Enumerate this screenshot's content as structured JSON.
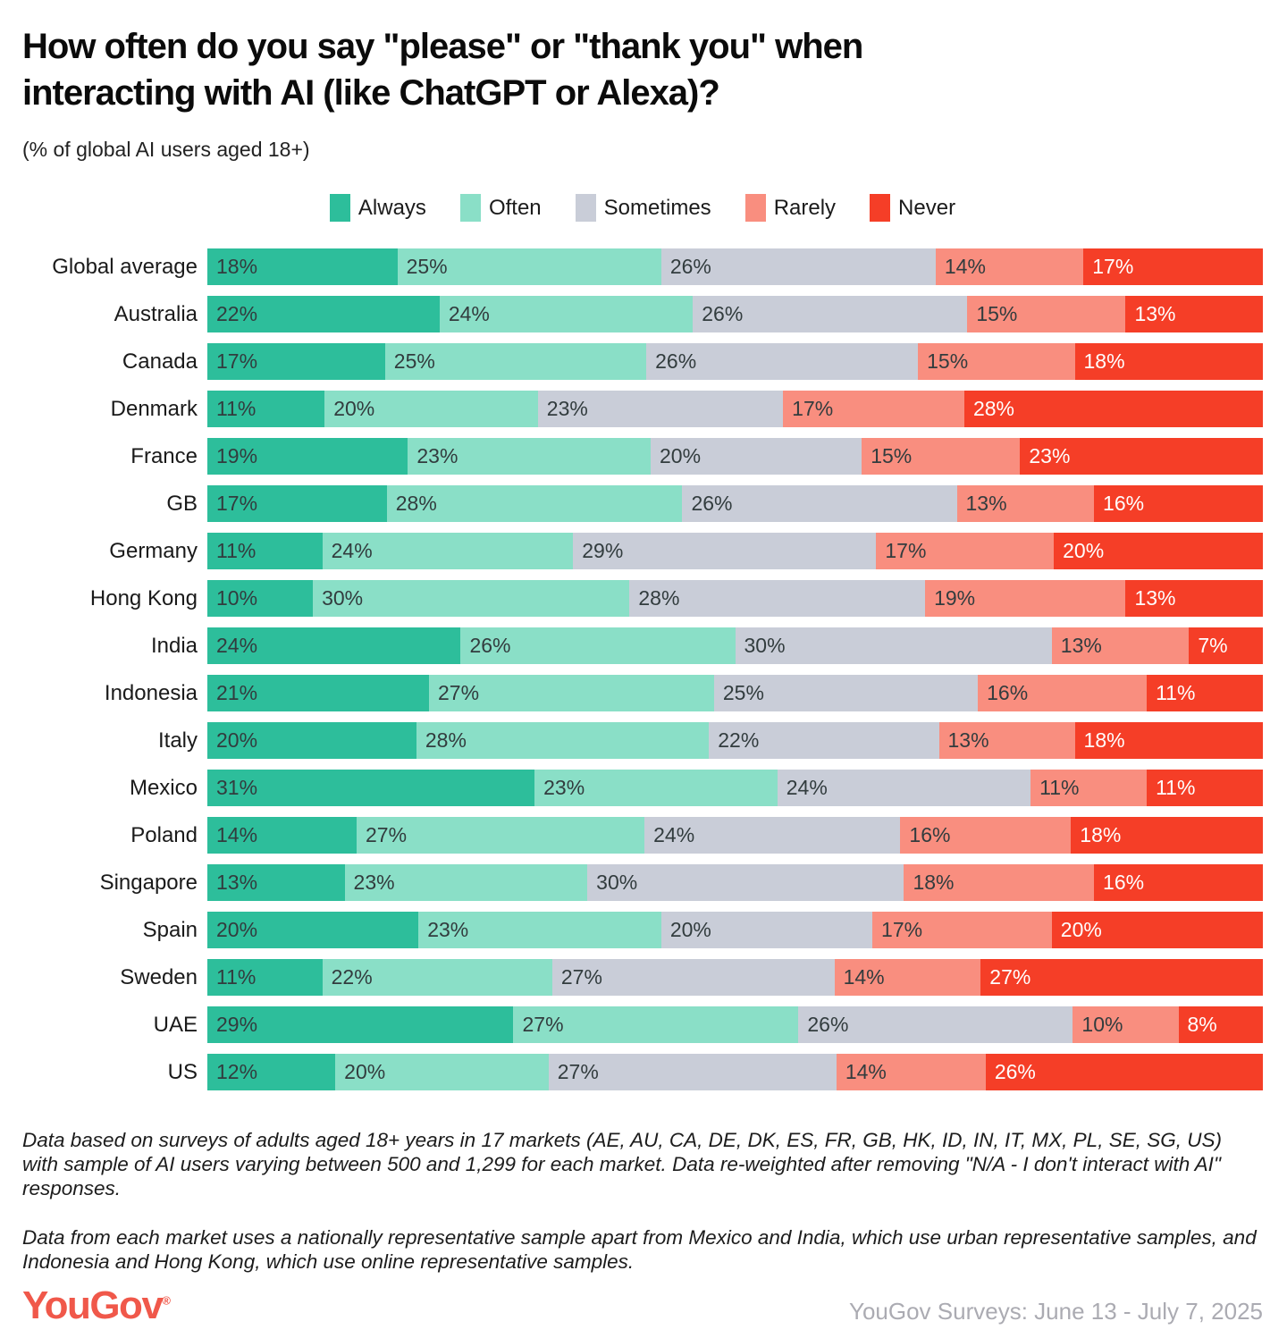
{
  "title": {
    "line1": "How often do you say \"please\" or \"thank you\" when",
    "line2": "interacting with AI (like ChatGPT or Alexa)?"
  },
  "subtitle": "(% of global AI users aged 18+)",
  "colors": {
    "always": "#2DBE9B",
    "often": "#8ADFC7",
    "sometimes": "#C9CDD8",
    "rarely": "#F98E7F",
    "never": "#F53E27",
    "label_dark": "#323C3E",
    "label_light": "#FFFFFF",
    "logo_red": "#F0584A",
    "source_gray": "#ABABB2"
  },
  "chart_data": {
    "type": "bar",
    "stacked": true,
    "orientation": "horizontal",
    "unit": "%",
    "legend_position": "top-center",
    "categories": [
      "Global average",
      "Australia",
      "Canada",
      "Denmark",
      "France",
      "GB",
      "Germany",
      "Hong Kong",
      "India",
      "Indonesia",
      "Italy",
      "Mexico",
      "Poland",
      "Singapore",
      "Spain",
      "Sweden",
      "UAE",
      "US"
    ],
    "series": [
      {
        "name": "Always",
        "color_key": "always",
        "text_color_key": "label_dark",
        "values": [
          18,
          22,
          17,
          11,
          19,
          17,
          11,
          10,
          24,
          21,
          20,
          31,
          14,
          13,
          20,
          11,
          29,
          12
        ]
      },
      {
        "name": "Often",
        "color_key": "often",
        "text_color_key": "label_dark",
        "values": [
          25,
          24,
          25,
          20,
          23,
          28,
          24,
          30,
          26,
          27,
          28,
          23,
          27,
          23,
          23,
          22,
          27,
          20
        ]
      },
      {
        "name": "Sometimes",
        "color_key": "sometimes",
        "text_color_key": "label_dark",
        "values": [
          26,
          26,
          26,
          23,
          20,
          26,
          29,
          28,
          30,
          25,
          22,
          24,
          24,
          30,
          20,
          27,
          26,
          27
        ]
      },
      {
        "name": "Rarely",
        "color_key": "rarely",
        "text_color_key": "label_dark",
        "values": [
          14,
          15,
          15,
          17,
          15,
          13,
          17,
          19,
          13,
          16,
          13,
          11,
          16,
          18,
          17,
          14,
          10,
          14
        ]
      },
      {
        "name": "Never",
        "color_key": "never",
        "text_color_key": "label_light",
        "values": [
          17,
          13,
          18,
          28,
          23,
          16,
          20,
          13,
          7,
          11,
          18,
          11,
          18,
          16,
          20,
          27,
          8,
          26
        ]
      }
    ]
  },
  "footnotes": [
    "Data based on surveys of adults aged 18+ years in 17 markets (AE, AU, CA, DE, DK, ES, FR, GB, HK, ID, IN, IT, MX, PL, SE, SG, US) with sample of AI users varying between 500 and 1,299 for each market. Data re-weighted after removing \"N/A - I don't interact with AI\" responses.",
    "Data from each market uses a nationally representative sample apart from Mexico and India, which use urban representative samples, and Indonesia and Hong Kong, which use online representative samples."
  ],
  "logo": {
    "text": "YouGov",
    "mark": "®"
  },
  "source": "YouGov Surveys: June 13 - July 7, 2025"
}
